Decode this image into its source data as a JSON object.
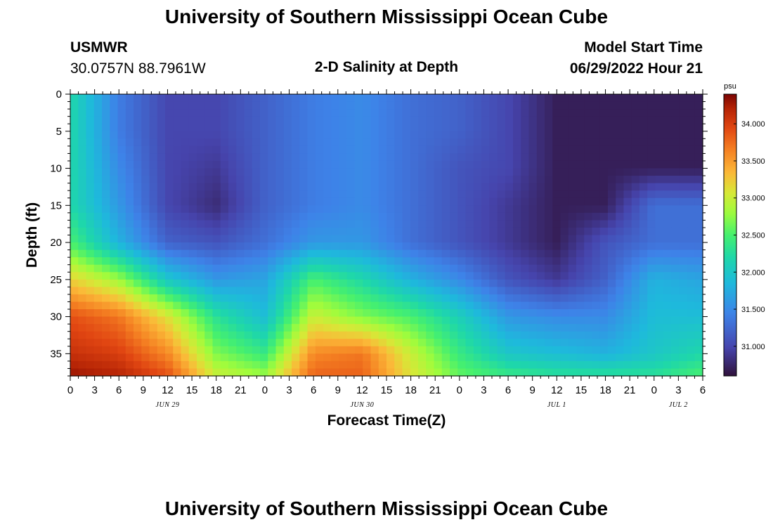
{
  "page": {
    "title": "University of Southern Mississippi Ocean Cube",
    "footer_title": "University of Southern Mississippi Ocean Cube"
  },
  "header": {
    "station": "USMWR",
    "coords": "30.0757N  88.7961W",
    "plot_title": "2-D Salinity at Depth",
    "start_label": "Model Start Time",
    "start_value": "06/29/2022 Hour 21"
  },
  "chart_data": {
    "type": "heatmap",
    "title": "2-D Salinity at Depth",
    "xlabel": "Forecast Time(Z)",
    "ylabel": "Depth (ft)",
    "x_ticks": [
      "0",
      "3",
      "6",
      "9",
      "12",
      "15",
      "18",
      "21",
      "0",
      "3",
      "6",
      "9",
      "12",
      "15",
      "18",
      "21",
      "0",
      "3",
      "6",
      "9",
      "12",
      "15",
      "18",
      "21",
      "0",
      "3",
      "6"
    ],
    "x_range_hours": [
      0,
      78
    ],
    "date_labels": [
      {
        "label": "JUN 29",
        "hour": 12
      },
      {
        "label": "JUN 30",
        "hour": 36
      },
      {
        "label": "JUL 1",
        "hour": 60
      },
      {
        "label": "JUL 2",
        "hour": 75
      }
    ],
    "y_ticks": [
      0,
      5,
      10,
      15,
      20,
      25,
      30,
      35
    ],
    "y_range": [
      0,
      38
    ],
    "colorbar": {
      "unit": "psu",
      "range": [
        30.6,
        34.4
      ],
      "ticks": [
        "34.000",
        "33.500",
        "33.000",
        "32.500",
        "32.000",
        "31.500",
        "31.000"
      ],
      "tick_values": [
        34.0,
        33.5,
        33.0,
        32.5,
        32.0,
        31.5,
        31.0
      ]
    },
    "time_hours": [
      0,
      6,
      12,
      18,
      24,
      30,
      36,
      42,
      48,
      54,
      60,
      66,
      72,
      78
    ],
    "depth_ft": [
      0,
      5,
      10,
      15,
      20,
      25,
      30,
      35,
      38
    ],
    "salinity_psu": [
      [
        32.2,
        31.4,
        31.0,
        31.0,
        31.2,
        31.4,
        31.5,
        31.3,
        31.2,
        31.0,
        30.7,
        30.7,
        30.7,
        30.7
      ],
      [
        32.2,
        31.4,
        31.0,
        31.0,
        31.2,
        31.4,
        31.5,
        31.3,
        31.2,
        31.0,
        30.7,
        30.7,
        30.7,
        30.7
      ],
      [
        32.2,
        31.5,
        31.0,
        30.9,
        31.2,
        31.4,
        31.5,
        31.3,
        31.1,
        31.0,
        30.7,
        30.7,
        30.7,
        30.7
      ],
      [
        32.2,
        31.6,
        31.0,
        30.8,
        31.2,
        31.4,
        31.5,
        31.3,
        31.1,
        30.9,
        30.7,
        30.7,
        31.3,
        31.3
      ],
      [
        32.5,
        31.8,
        31.2,
        31.1,
        31.3,
        31.6,
        31.6,
        31.3,
        31.1,
        30.9,
        30.7,
        31.1,
        31.3,
        31.3
      ],
      [
        33.2,
        32.8,
        32.0,
        31.6,
        31.7,
        32.5,
        32.2,
        31.8,
        31.5,
        31.1,
        30.9,
        31.2,
        31.8,
        31.7
      ],
      [
        33.9,
        33.7,
        33.1,
        32.3,
        31.9,
        33.0,
        32.7,
        32.5,
        32.1,
        31.6,
        31.5,
        31.5,
        31.9,
        31.9
      ],
      [
        34.1,
        34.0,
        33.6,
        32.7,
        32.4,
        33.6,
        33.7,
        33.0,
        32.4,
        32.0,
        31.9,
        31.8,
        32.0,
        32.2
      ],
      [
        34.3,
        34.2,
        33.9,
        33.0,
        32.8,
        33.8,
        33.8,
        33.1,
        32.6,
        32.4,
        32.3,
        32.3,
        32.3,
        32.5
      ]
    ]
  }
}
